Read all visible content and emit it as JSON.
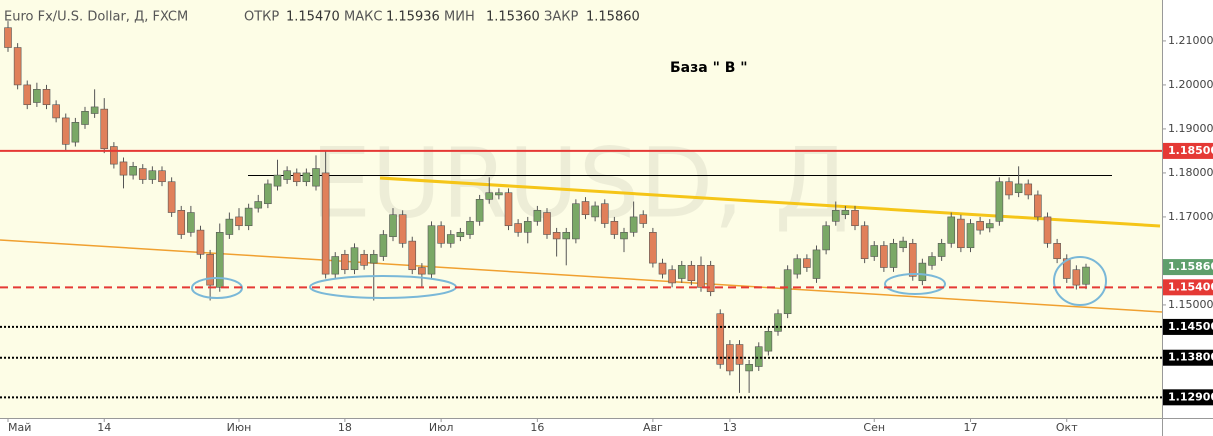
{
  "chart_data": {
    "type": "candlestick",
    "title": "Euro Fx/U.S. Dollar, Д, FXCM",
    "header": [
      {
        "label": "ОТКР",
        "value": "1.15470"
      },
      {
        "label": "МАКС",
        "value": "1.15936"
      },
      {
        "label": "МИН",
        "value": "1.15360"
      },
      {
        "label": "ЗАКР",
        "value": "1.15860"
      }
    ],
    "annotation": "База  \" В \"",
    "watermark": "EURUSD, Д",
    "up_color": "#7aa866",
    "down_color": "#e0805a",
    "open": [
      1.213,
      1.2085,
      1.2,
      1.196,
      1.199,
      1.1955,
      1.1925,
      1.187,
      1.191,
      1.1935,
      1.1945,
      1.186,
      1.1825,
      1.1795,
      1.181,
      1.1785,
      1.1805,
      1.178,
      1.1715,
      1.1665,
      1.167,
      1.1615,
      1.154,
      1.166,
      1.17,
      1.168,
      1.172,
      1.173,
      1.177,
      1.1785,
      1.18,
      1.178,
      1.177,
      1.18,
      1.157,
      1.1615,
      1.158,
      1.1615,
      1.1595,
      1.161,
      1.1655,
      1.1705,
      1.1645,
      1.1585,
      1.157,
      1.168,
      1.164,
      1.1655,
      1.166,
      1.169,
      1.174,
      1.175,
      1.1755,
      1.1685,
      1.1665,
      1.169,
      1.171,
      1.1665,
      1.165,
      1.165,
      1.1735,
      1.17,
      1.173,
      1.169,
      1.165,
      1.1665,
      1.1705,
      1.1665,
      1.1595,
      1.158,
      1.156,
      1.159,
      1.159,
      1.159,
      1.148,
      1.141,
      1.141,
      1.135,
      1.136,
      1.1395,
      1.144,
      1.148,
      1.157,
      1.1605,
      1.156,
      1.1625,
      1.169,
      1.1705,
      1.1715,
      1.168,
      1.161,
      1.1635,
      1.1585,
      1.163,
      1.164,
      1.1555,
      1.159,
      1.161,
      1.164,
      1.1695,
      1.163,
      1.169,
      1.1675,
      1.169,
      1.178,
      1.1755,
      1.1775,
      1.175,
      1.17,
      1.164,
      1.1605,
      1.158,
      1.1547
    ],
    "high": [
      1.2145,
      1.2095,
      1.201,
      1.2005,
      1.2,
      1.1965,
      1.1935,
      1.1925,
      1.195,
      1.199,
      1.197,
      1.187,
      1.1835,
      1.1825,
      1.182,
      1.1815,
      1.1815,
      1.179,
      1.1725,
      1.1725,
      1.168,
      1.1625,
      1.1685,
      1.171,
      1.172,
      1.173,
      1.175,
      1.1785,
      1.183,
      1.1815,
      1.181,
      1.181,
      1.184,
      1.185,
      1.162,
      1.1625,
      1.164,
      1.1625,
      1.1625,
      1.167,
      1.172,
      1.1715,
      1.1655,
      1.1595,
      1.169,
      1.169,
      1.167,
      1.1675,
      1.17,
      1.175,
      1.179,
      1.1765,
      1.1765,
      1.1695,
      1.17,
      1.1725,
      1.172,
      1.1675,
      1.1675,
      1.174,
      1.1745,
      1.1735,
      1.174,
      1.17,
      1.1675,
      1.1735,
      1.1715,
      1.1675,
      1.1605,
      1.159,
      1.16,
      1.16,
      1.161,
      1.16,
      1.149,
      1.142,
      1.142,
      1.1375,
      1.1415,
      1.145,
      1.149,
      1.159,
      1.1615,
      1.1615,
      1.1635,
      1.169,
      1.1735,
      1.1725,
      1.1725,
      1.169,
      1.1645,
      1.1645,
      1.165,
      1.1655,
      1.165,
      1.1605,
      1.162,
      1.165,
      1.171,
      1.1705,
      1.1695,
      1.17,
      1.1695,
      1.179,
      1.179,
      1.1815,
      1.1785,
      1.176,
      1.171,
      1.165,
      1.1615,
      1.159,
      1.15936
    ],
    "low": [
      1.2075,
      1.199,
      1.1945,
      1.195,
      1.1945,
      1.1915,
      1.185,
      1.186,
      1.19,
      1.1925,
      1.1845,
      1.181,
      1.1765,
      1.1785,
      1.1775,
      1.1775,
      1.177,
      1.17,
      1.165,
      1.1655,
      1.1605,
      1.151,
      1.153,
      1.165,
      1.167,
      1.167,
      1.171,
      1.172,
      1.176,
      1.1775,
      1.177,
      1.177,
      1.176,
      1.156,
      1.156,
      1.157,
      1.157,
      1.158,
      1.151,
      1.16,
      1.1645,
      1.163,
      1.157,
      1.154,
      1.156,
      1.163,
      1.163,
      1.1645,
      1.165,
      1.168,
      1.173,
      1.174,
      1.167,
      1.1655,
      1.164,
      1.168,
      1.165,
      1.161,
      1.159,
      1.164,
      1.1695,
      1.169,
      1.1675,
      1.165,
      1.162,
      1.1655,
      1.1675,
      1.1585,
      1.156,
      1.154,
      1.155,
      1.1545,
      1.153,
      1.152,
      1.1355,
      1.134,
      1.13,
      1.13,
      1.135,
      1.1385,
      1.143,
      1.147,
      1.156,
      1.1575,
      1.155,
      1.1615,
      1.168,
      1.1695,
      1.167,
      1.1595,
      1.16,
      1.1575,
      1.1575,
      1.162,
      1.1555,
      1.1545,
      1.158,
      1.16,
      1.163,
      1.162,
      1.162,
      1.166,
      1.1665,
      1.168,
      1.174,
      1.1745,
      1.174,
      1.169,
      1.163,
      1.1595,
      1.155,
      1.1535,
      1.1536
    ],
    "close": [
      1.2085,
      1.2,
      1.1955,
      1.199,
      1.1955,
      1.1925,
      1.1865,
      1.1915,
      1.194,
      1.195,
      1.1855,
      1.182,
      1.1795,
      1.1815,
      1.1785,
      1.1805,
      1.178,
      1.171,
      1.166,
      1.171,
      1.1615,
      1.1545,
      1.1665,
      1.1695,
      1.168,
      1.172,
      1.1735,
      1.1775,
      1.1795,
      1.1805,
      1.178,
      1.18,
      1.181,
      1.157,
      1.161,
      1.158,
      1.163,
      1.159,
      1.1615,
      1.166,
      1.1705,
      1.164,
      1.158,
      1.157,
      1.168,
      1.164,
      1.166,
      1.1665,
      1.169,
      1.174,
      1.1755,
      1.1755,
      1.168,
      1.1665,
      1.169,
      1.1715,
      1.166,
      1.165,
      1.1665,
      1.173,
      1.1705,
      1.1725,
      1.1685,
      1.166,
      1.1665,
      1.17,
      1.1685,
      1.1595,
      1.157,
      1.155,
      1.159,
      1.1555,
      1.154,
      1.153,
      1.1365,
      1.135,
      1.1365,
      1.1365,
      1.1405,
      1.144,
      1.148,
      1.158,
      1.1605,
      1.1585,
      1.1625,
      1.168,
      1.1715,
      1.1715,
      1.168,
      1.1605,
      1.1635,
      1.1585,
      1.164,
      1.1645,
      1.1565,
      1.1595,
      1.161,
      1.164,
      1.17,
      1.163,
      1.1685,
      1.167,
      1.1685,
      1.178,
      1.175,
      1.1775,
      1.175,
      1.17,
      1.164,
      1.1605,
      1.156,
      1.1545,
      1.1586
    ],
    "ylim": [
      1.1243,
      1.2193
    ],
    "yticks": [
      {
        "value": 1.21,
        "label": "1.21000"
      },
      {
        "value": 1.2,
        "label": "1.20000"
      },
      {
        "value": 1.19,
        "label": "1.19000"
      },
      {
        "value": 1.18,
        "label": "1.18000"
      },
      {
        "value": 1.17,
        "label": "1.17000"
      },
      {
        "value": 1.15,
        "label": "1.15000"
      }
    ],
    "xticks": [
      {
        "value": 0,
        "label": "Май"
      },
      {
        "value": 10,
        "label": "14"
      },
      {
        "value": 24,
        "label": "Июн"
      },
      {
        "value": 35,
        "label": "18"
      },
      {
        "value": 45,
        "label": "Июл"
      },
      {
        "value": 55,
        "label": "16"
      },
      {
        "value": 67,
        "label": "Авг"
      },
      {
        "value": 75,
        "label": "13"
      },
      {
        "value": 90,
        "label": "Сен"
      },
      {
        "value": 100,
        "label": "17"
      },
      {
        "value": 110,
        "label": "Окт"
      }
    ],
    "levels": [
      {
        "value": 1.185,
        "label": "1.18500",
        "color": "#e53935",
        "style": "solid"
      },
      {
        "value": 1.154,
        "label": "1.15400",
        "color": "#e53935",
        "style": "dashed"
      },
      {
        "value": 1.145,
        "label": "1.14500",
        "color": "#000000",
        "style": "dotted"
      },
      {
        "value": 1.138,
        "label": "1.13800",
        "color": "#000000",
        "style": "dotted"
      },
      {
        "value": 1.129,
        "label": "1.12900",
        "color": "#000000",
        "style": "dotted"
      }
    ],
    "last": {
      "value": 1.1586,
      "label": "1.15860",
      "color": "#5e9f6c"
    }
  }
}
